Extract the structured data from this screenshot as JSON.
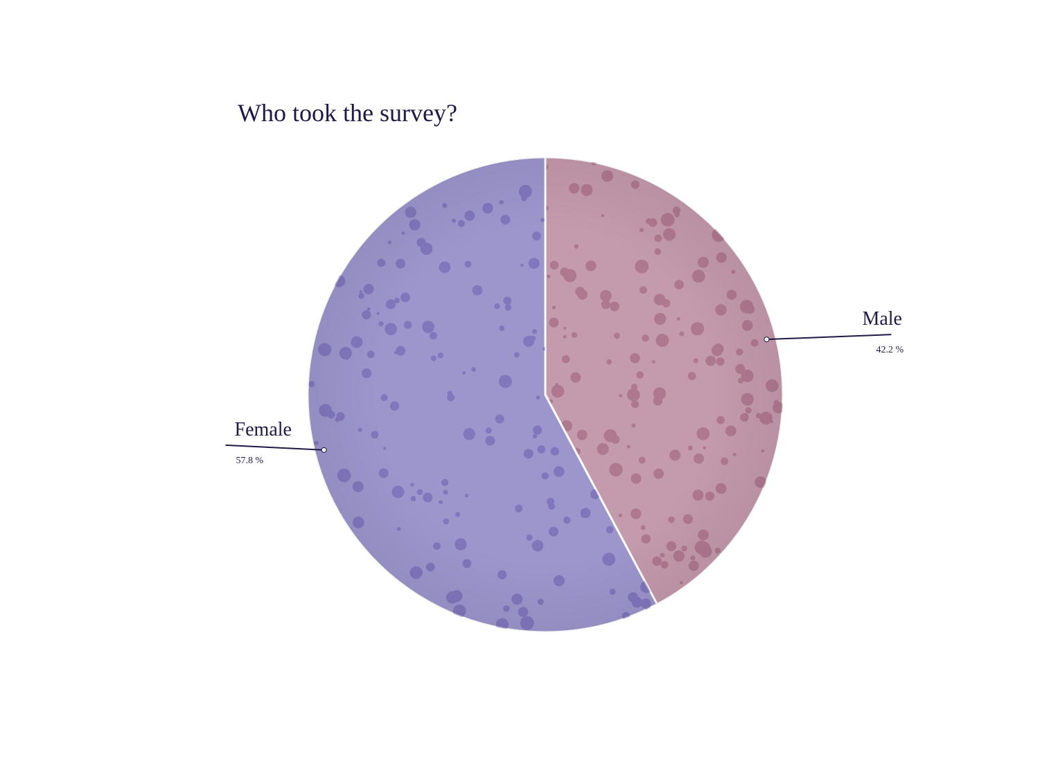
{
  "chart_data": {
    "type": "pie",
    "title": "Who took the survey?",
    "categories": [
      "Male",
      "Female"
    ],
    "values": [
      42.2,
      57.8
    ],
    "value_labels": [
      "42.2 %",
      "57.8 %"
    ],
    "colors": [
      "#c49aad",
      "#9d96cd"
    ]
  }
}
